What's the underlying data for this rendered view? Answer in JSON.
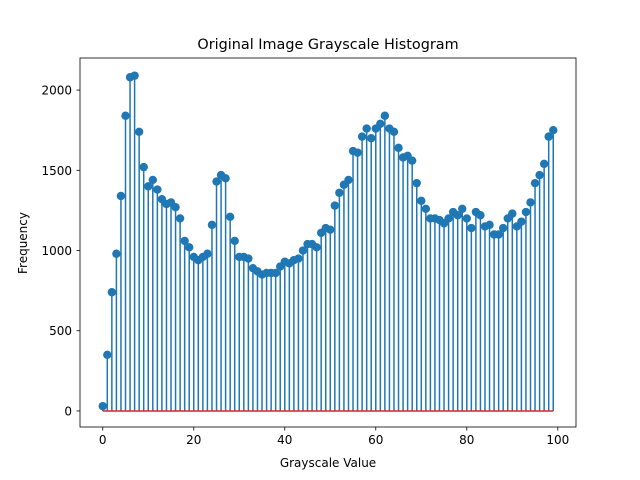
{
  "chart_data": {
    "type": "stem",
    "title": "Original Image Grayscale Histogram",
    "xlabel": "Grayscale Value",
    "ylabel": "Frequency",
    "xlim": [
      -5,
      104
    ],
    "ylim": [
      -100,
      2200
    ],
    "xticks": [
      0,
      20,
      40,
      60,
      80,
      100
    ],
    "yticks": [
      0,
      500,
      1000,
      1500,
      2000
    ],
    "grid": false,
    "stem_color": "#1f77b4",
    "baseline_color": "#d62728",
    "x": [
      0,
      1,
      2,
      3,
      4,
      5,
      6,
      7,
      8,
      9,
      10,
      11,
      12,
      13,
      14,
      15,
      16,
      17,
      18,
      19,
      20,
      21,
      22,
      23,
      24,
      25,
      26,
      27,
      28,
      29,
      30,
      31,
      32,
      33,
      34,
      35,
      36,
      37,
      38,
      39,
      40,
      41,
      42,
      43,
      44,
      45,
      46,
      47,
      48,
      49,
      50,
      51,
      52,
      53,
      54,
      55,
      56,
      57,
      58,
      59,
      60,
      61,
      62,
      63,
      64,
      65,
      66,
      67,
      68,
      69,
      70,
      71,
      72,
      73,
      74,
      75,
      76,
      77,
      78,
      79,
      80,
      81,
      82,
      83,
      84,
      85,
      86,
      87,
      88,
      89,
      90,
      91,
      92,
      93,
      94,
      95,
      96,
      97,
      98,
      99
    ],
    "values": [
      30,
      350,
      740,
      980,
      1340,
      1840,
      2080,
      2090,
      1740,
      1520,
      1400,
      1440,
      1380,
      1320,
      1290,
      1300,
      1270,
      1200,
      1060,
      1020,
      960,
      940,
      960,
      980,
      1160,
      1430,
      1470,
      1450,
      1210,
      1060,
      960,
      960,
      950,
      890,
      870,
      850,
      860,
      860,
      860,
      900,
      930,
      920,
      940,
      950,
      1000,
      1040,
      1040,
      1020,
      1110,
      1140,
      1130,
      1280,
      1360,
      1410,
      1440,
      1620,
      1610,
      1710,
      1760,
      1700,
      1760,
      1790,
      1840,
      1760,
      1740,
      1640,
      1580,
      1590,
      1560,
      1420,
      1310,
      1260,
      1200,
      1200,
      1190,
      1170,
      1200,
      1240,
      1220,
      1260,
      1200,
      1140,
      1240,
      1220,
      1150,
      1160,
      1100,
      1100,
      1140,
      1200,
      1230,
      1150,
      1180,
      1240,
      1300,
      1420,
      1470,
      1540,
      1710,
      1750
    ]
  }
}
